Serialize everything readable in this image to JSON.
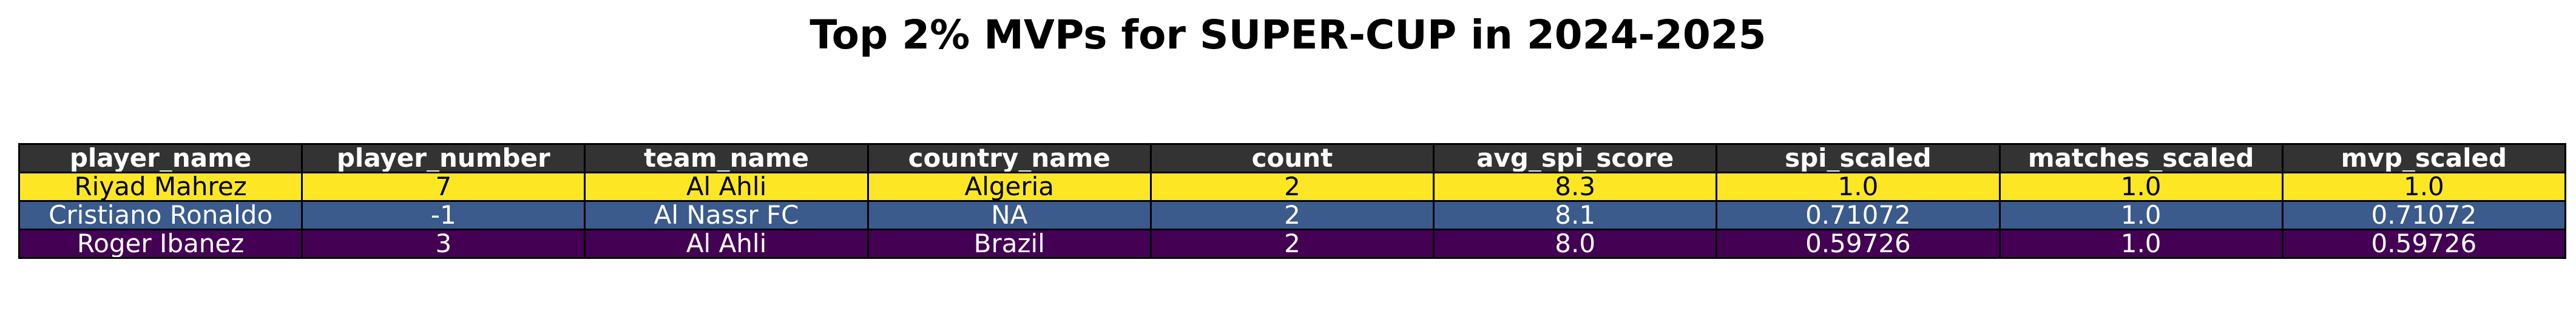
{
  "title": "Top 2% MVPs for SUPER-CUP in 2024-2025",
  "chart_data": {
    "type": "table",
    "title": "Top 2% MVPs for SUPER-CUP in 2024-2025",
    "columns": [
      "player_name",
      "player_number",
      "team_name",
      "country_name",
      "count",
      "avg_spi_score",
      "spi_scaled",
      "matches_scaled",
      "mvp_scaled"
    ],
    "rows": [
      [
        "Riyad Mahrez",
        "7",
        "Al Ahli",
        "Algeria",
        "2",
        "8.3",
        "1.0",
        "1.0",
        "1.0"
      ],
      [
        "Cristiano Ronaldo",
        "-1",
        "Al Nassr FC",
        "NA",
        "2",
        "8.1",
        "0.71072",
        "1.0",
        "0.71072"
      ],
      [
        "Roger Ibanez",
        "3",
        "Al Ahli",
        "Brazil",
        "2",
        "8.0",
        "0.59726",
        "1.0",
        "0.59726"
      ]
    ],
    "header_color": "#333333",
    "header_text_color": "#ffffff",
    "row_colors": [
      "#fde725",
      "#3b5b8c",
      "#440154"
    ],
    "row_text_colors": [
      "#000000",
      "#ffffff",
      "#ffffff"
    ]
  }
}
